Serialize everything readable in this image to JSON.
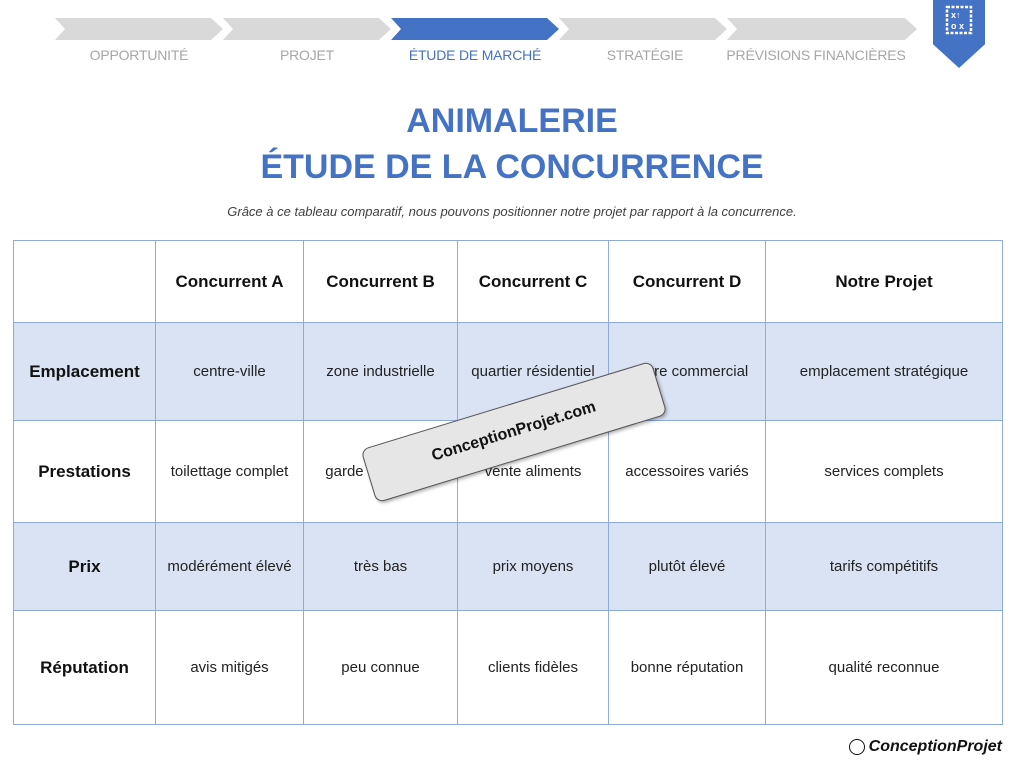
{
  "steps": [
    {
      "label": "OPPORTUNITÉ",
      "active": false
    },
    {
      "label": "PROJET",
      "active": false
    },
    {
      "label": "ÉTUDE DE MARCHÉ",
      "active": true
    },
    {
      "label": "STRATÉGIE",
      "active": false
    },
    {
      "label": "PRÉVISIONS FINANCIÈRES",
      "active": false
    }
  ],
  "badge_icon": "strategy-board-icon",
  "title_line1": "ANIMALERIE",
  "title_line2": "ÉTUDE DE LA CONCURRENCE",
  "subtitle": "Grâce à ce tableau comparatif, nous pouvons positionner notre projet par rapport à la concurrence.",
  "table": {
    "headers": [
      "",
      "Concurrent A",
      "Concurrent B",
      "Concurrent C",
      "Concurrent D",
      "Notre Projet"
    ],
    "rows": [
      {
        "label": "Emplacement",
        "cells": [
          "centre-ville",
          "zone industrielle",
          "quartier résidentiel",
          "centre commercial",
          "emplacement stratégique"
        ]
      },
      {
        "label": "Prestations",
        "cells": [
          "toilettage complet",
          "garde d'animaux",
          "vente aliments",
          "accessoires variés",
          "services complets"
        ]
      },
      {
        "label": "Prix",
        "cells": [
          "modérément élevé",
          "très bas",
          "prix moyens",
          "plutôt élevé",
          "tarifs compétitifs"
        ]
      },
      {
        "label": "Réputation",
        "cells": [
          "avis mitigés",
          "peu connue",
          "clients fidèles",
          "bonne réputation",
          "qualité reconnue"
        ]
      }
    ]
  },
  "watermark": "ConceptionProjet.com",
  "logo": "ConceptionProjet",
  "colors": {
    "accent": "#4472c4",
    "shade": "#dae3f3",
    "inactive": "#d9d9d9"
  }
}
